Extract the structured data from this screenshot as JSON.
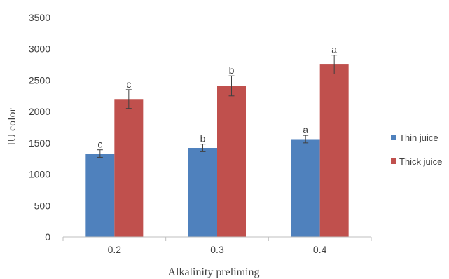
{
  "chart_data": {
    "type": "bar",
    "categories": [
      "0.2",
      "0.3",
      "0.4"
    ],
    "series": [
      {
        "name": "Thin juice",
        "color": "#4F81BD",
        "values": [
          1330,
          1420,
          1560
        ],
        "errors": [
          60,
          60,
          60
        ],
        "labels": [
          "c",
          "b",
          "a"
        ]
      },
      {
        "name": "Thick juice",
        "color": "#C0504D",
        "values": [
          2200,
          2410,
          2750
        ],
        "errors": [
          150,
          160,
          150
        ],
        "labels": [
          "c",
          "b",
          "a"
        ]
      }
    ],
    "xlabel": "Alkalinity preliming",
    "ylabel": "IU color",
    "ylim": [
      0,
      3500
    ],
    "yticks": [
      0,
      500,
      1000,
      1500,
      2000,
      2500,
      3000,
      3500
    ],
    "grid": false,
    "legend": "right"
  }
}
